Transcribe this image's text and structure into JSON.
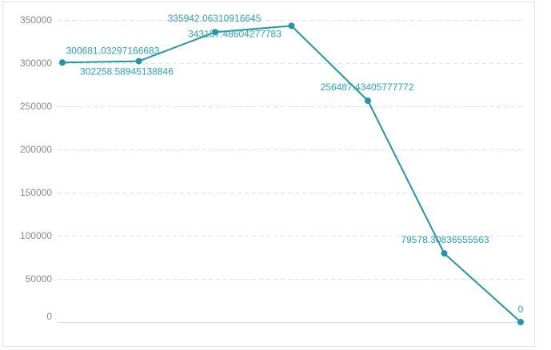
{
  "chart_data": {
    "type": "line",
    "title": "",
    "xlabel": "",
    "ylabel": "",
    "ylim": [
      0,
      350000
    ],
    "yticks": [
      0,
      50000,
      100000,
      150000,
      200000,
      250000,
      300000,
      350000
    ],
    "grid": true,
    "series": [
      {
        "color": "#2196a8",
        "values": [
          300681.03297166683,
          302258.58945138846,
          335942.06310916645,
          343187.48604277783,
          256487.43405777772,
          79578.30836555563,
          0
        ],
        "labels": [
          "300681.03297166683",
          "302258.58945138846",
          "335942.06310916645",
          "343187.48604277783",
          "256487.43405777772",
          "79578.30836555563",
          "0"
        ]
      }
    ]
  }
}
